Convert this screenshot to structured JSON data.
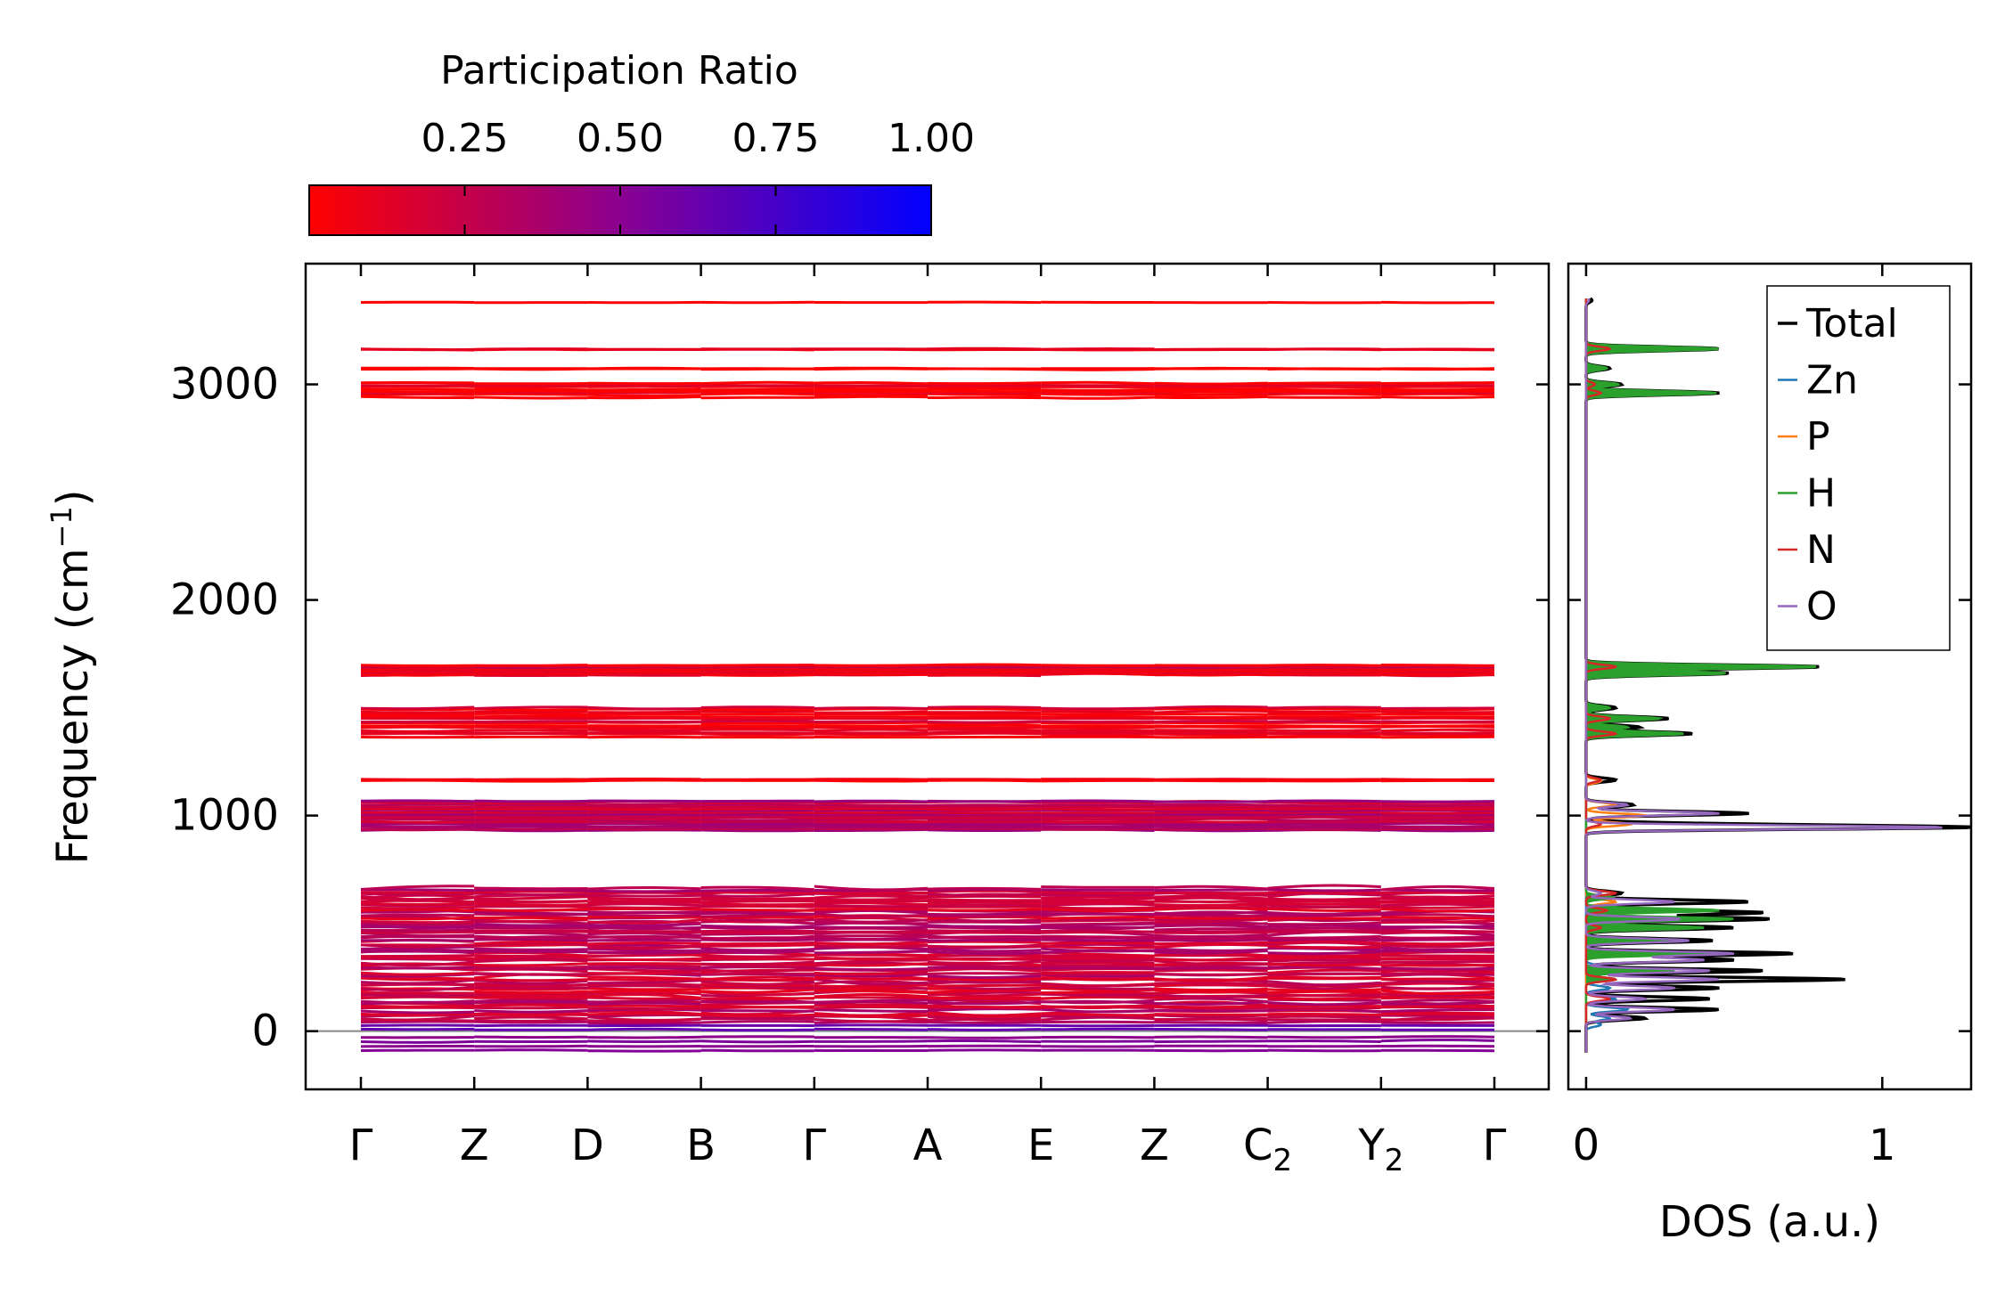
{
  "colorbar": {
    "title": "Participation Ratio",
    "ticks": [
      0.25,
      0.5,
      0.75,
      1.0
    ],
    "tick_labels": [
      "0.25",
      "0.50",
      "0.75",
      "1.00"
    ],
    "range": [
      0.0,
      1.0
    ],
    "color_low": "#ff0000",
    "color_mid": "#8a0090",
    "color_high": "#0000ff"
  },
  "chart_data": [
    {
      "type": "line",
      "title": "",
      "xlabel": "",
      "ylabel": "Frequency (cm",
      "ylabel_sup": "−1",
      "ylabel_close": ")",
      "ylim": [
        -270,
        3560
      ],
      "yticks": [
        0,
        1000,
        2000,
        3000
      ],
      "ytick_labels": [
        "0",
        "1000",
        "2000",
        "3000"
      ],
      "kpoints": [
        "Γ",
        "Z",
        "D",
        "B",
        "Γ",
        "A",
        "E",
        "Z",
        "C",
        "Y",
        "Γ"
      ],
      "kpoint_subscripts": [
        "",
        "",
        "",
        "",
        "",
        "",
        "",
        "",
        "2",
        "2",
        ""
      ],
      "band_groups": [
        {
          "freq_min": 3380,
          "freq_max": 3390,
          "bands": 1,
          "participation_ratio": 0.0
        },
        {
          "freq_min": 3160,
          "freq_max": 3165,
          "bands": 2,
          "participation_ratio": 0.02
        },
        {
          "freq_min": 3070,
          "freq_max": 3075,
          "bands": 2,
          "participation_ratio": 0.02
        },
        {
          "freq_min": 2940,
          "freq_max": 3010,
          "bands": 8,
          "participation_ratio": 0.05
        },
        {
          "freq_min": 1650,
          "freq_max": 1700,
          "bands": 10,
          "participation_ratio": 0.15
        },
        {
          "freq_min": 1360,
          "freq_max": 1510,
          "bands": 14,
          "participation_ratio": 0.12
        },
        {
          "freq_min": 1160,
          "freq_max": 1170,
          "bands": 2,
          "participation_ratio": 0.02
        },
        {
          "freq_min": 930,
          "freq_max": 1070,
          "bands": 20,
          "participation_ratio": 0.3
        },
        {
          "freq_min": 40,
          "freq_max": 670,
          "bands": 70,
          "participation_ratio": 0.25
        },
        {
          "freq_min": -100,
          "freq_max": 40,
          "bands": 6,
          "participation_ratio": 0.6
        }
      ]
    },
    {
      "type": "line",
      "title": "",
      "xlabel": "DOS (a.u.)",
      "ylabel": "",
      "xlim": [
        -0.06,
        1.3
      ],
      "ylim": [
        -270,
        3560
      ],
      "xticks": [
        0,
        1
      ],
      "xtick_labels": [
        "0",
        "1"
      ],
      "legend_position": "top-right",
      "series": [
        {
          "name": "Total",
          "color": "#000000",
          "peaks": [
            [
              3390,
              0.02
            ],
            [
              3165,
              0.45
            ],
            [
              3075,
              0.08
            ],
            [
              3000,
              0.12
            ],
            [
              2960,
              0.45
            ],
            [
              1690,
              0.79
            ],
            [
              1660,
              0.48
            ],
            [
              1500,
              0.1
            ],
            [
              1450,
              0.28
            ],
            [
              1410,
              0.18
            ],
            [
              1380,
              0.36
            ],
            [
              1165,
              0.1
            ],
            [
              1050,
              0.16
            ],
            [
              1010,
              0.55
            ],
            [
              960,
              0.3
            ],
            [
              945,
              1.23
            ],
            [
              640,
              0.12
            ],
            [
              600,
              0.55
            ],
            [
              550,
              0.6
            ],
            [
              520,
              0.62
            ],
            [
              480,
              0.5
            ],
            [
              420,
              0.43
            ],
            [
              360,
              0.7
            ],
            [
              330,
              0.5
            ],
            [
              280,
              0.6
            ],
            [
              240,
              0.88
            ],
            [
              200,
              0.45
            ],
            [
              150,
              0.42
            ],
            [
              100,
              0.45
            ],
            [
              60,
              0.2
            ]
          ]
        },
        {
          "name": "Zn",
          "color": "#1f77b4",
          "peaks": [
            [
              300,
              0.05
            ],
            [
              200,
              0.08
            ],
            [
              150,
              0.1
            ],
            [
              100,
              0.14
            ],
            [
              60,
              0.08
            ],
            [
              30,
              0.05
            ]
          ]
        },
        {
          "name": "P",
          "color": "#ff7f0e",
          "peaks": [
            [
              1160,
              0.05
            ],
            [
              1050,
              0.1
            ],
            [
              1000,
              0.2
            ],
            [
              960,
              0.15
            ],
            [
              600,
              0.1
            ],
            [
              560,
              0.12
            ],
            [
              520,
              0.08
            ]
          ]
        },
        {
          "name": "H",
          "color": "#2ca02c",
          "peaks": [
            [
              3165,
              0.45
            ],
            [
              3075,
              0.07
            ],
            [
              3000,
              0.11
            ],
            [
              2960,
              0.44
            ],
            [
              1690,
              0.78
            ],
            [
              1660,
              0.47
            ],
            [
              1500,
              0.08
            ],
            [
              1450,
              0.25
            ],
            [
              1410,
              0.14
            ],
            [
              1380,
              0.33
            ],
            [
              620,
              0.09
            ],
            [
              560,
              0.45
            ],
            [
              520,
              0.5
            ],
            [
              480,
              0.4
            ],
            [
              420,
              0.3
            ],
            [
              360,
              0.45
            ],
            [
              280,
              0.3
            ],
            [
              240,
              0.1
            ]
          ]
        },
        {
          "name": "N",
          "color": "#d62728",
          "peaks": [
            [
              3165,
              0.08
            ],
            [
              3000,
              0.03
            ],
            [
              2960,
              0.05
            ],
            [
              1690,
              0.1
            ],
            [
              1450,
              0.08
            ],
            [
              1380,
              0.1
            ],
            [
              1165,
              0.05
            ],
            [
              960,
              0.05
            ],
            [
              640,
              0.1
            ],
            [
              560,
              0.07
            ],
            [
              480,
              0.05
            ],
            [
              240,
              0.1
            ],
            [
              150,
              0.08
            ]
          ]
        },
        {
          "name": "O",
          "color": "#9467bd",
          "peaks": [
            [
              3390,
              0.01
            ],
            [
              1050,
              0.14
            ],
            [
              1010,
              0.45
            ],
            [
              945,
              1.21
            ],
            [
              640,
              0.05
            ],
            [
              600,
              0.3
            ],
            [
              520,
              0.32
            ],
            [
              420,
              0.35
            ],
            [
              360,
              0.5
            ],
            [
              330,
              0.4
            ],
            [
              280,
              0.42
            ],
            [
              240,
              0.45
            ],
            [
              200,
              0.3
            ],
            [
              150,
              0.2
            ],
            [
              100,
              0.3
            ],
            [
              60,
              0.15
            ]
          ]
        }
      ]
    }
  ]
}
